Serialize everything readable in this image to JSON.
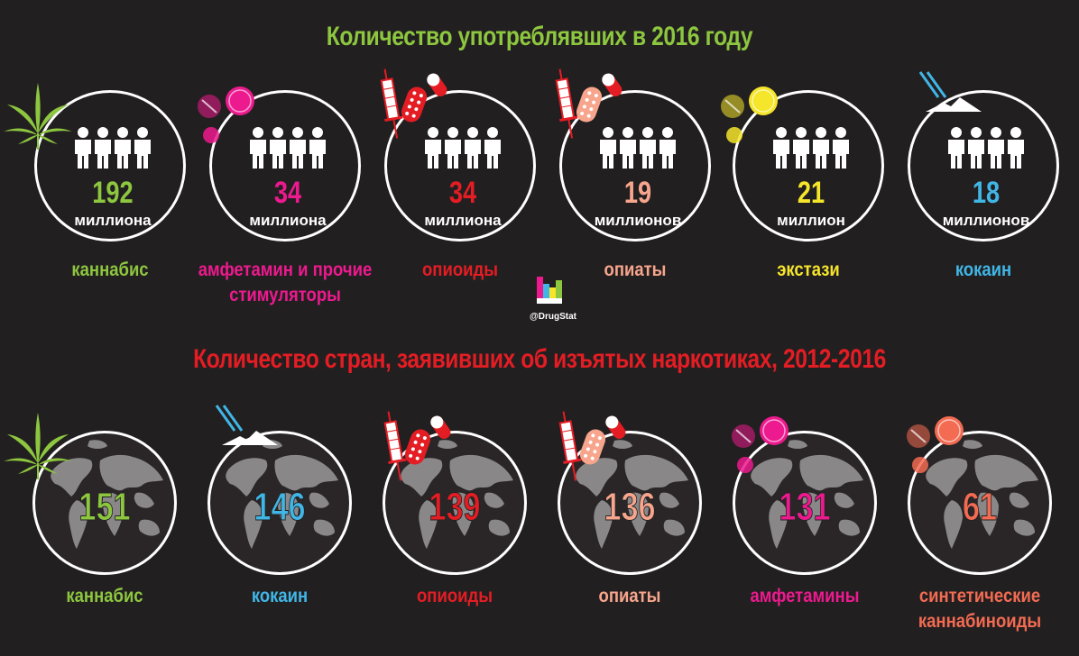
{
  "title_users": "Количество употреблявших в 2016 году",
  "title_countries": "Количество стран, заявивших об изъятых наркотиках, 2012-2016",
  "logo_text": "@DrugStat",
  "colors": {
    "green": "#8dc63f",
    "magenta": "#ec1a8e",
    "red": "#e41d24",
    "peach": "#f7a58c",
    "yellow": "#f5e52b",
    "blue": "#40b6e6",
    "salmon": "#f26b52"
  },
  "users": [
    {
      "number": "192",
      "unit": "миллиона",
      "label": "каннабис",
      "color": "#8dc63f",
      "icon": "cannabis-leaf-icon"
    },
    {
      "number": "34",
      "unit": "миллиона",
      "label": "амфетамин и прочие стимуляторы",
      "color": "#ec1a8e",
      "icon": "pills-icon"
    },
    {
      "number": "34",
      "unit": "миллиона",
      "label": "опиоиды",
      "color": "#e41d24",
      "icon": "syringe-pills-icon"
    },
    {
      "number": "19",
      "unit": "миллионов",
      "label": "опиаты",
      "color": "#f7a58c",
      "icon": "syringe-pills-icon"
    },
    {
      "number": "21",
      "unit": "миллион",
      "label": "экстази",
      "color": "#f5e52b",
      "icon": "pills-icon"
    },
    {
      "number": "18",
      "unit": "миллионов",
      "label": "кокаин",
      "color": "#40b6e6",
      "icon": "cocaine-lines-icon"
    }
  ],
  "countries": [
    {
      "number": "151",
      "label": "каннабис",
      "color": "#8dc63f",
      "icon": "cannabis-leaf-icon"
    },
    {
      "number": "146",
      "label": "кокаин",
      "color": "#40b6e6",
      "icon": "cocaine-lines-icon"
    },
    {
      "number": "139",
      "label": "опиоиды",
      "color": "#e41d24",
      "icon": "syringe-pills-icon"
    },
    {
      "number": "136",
      "label": "опиаты",
      "color": "#f7a58c",
      "icon": "syringe-pills-icon"
    },
    {
      "number": "131",
      "label": "амфетамины",
      "color": "#ec1a8e",
      "icon": "pills-icon"
    },
    {
      "number": "61",
      "label": "синтетические каннабиноиды",
      "color": "#f26b52",
      "icon": "pills-icon"
    }
  ]
}
